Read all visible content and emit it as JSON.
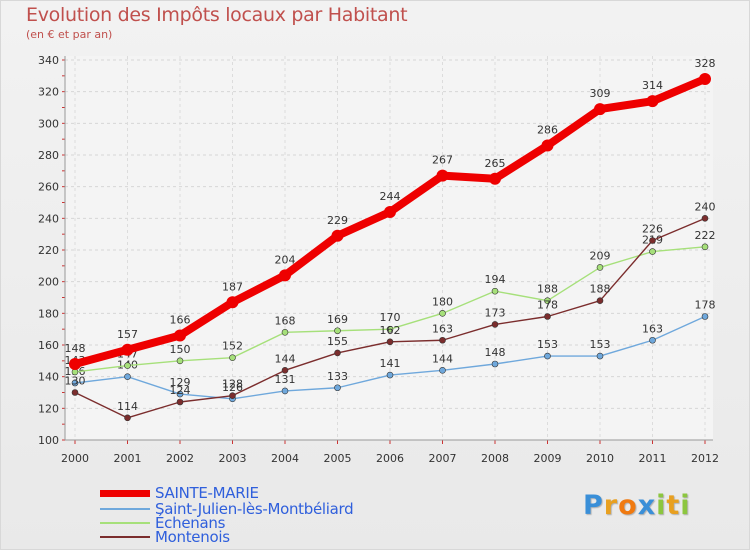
{
  "header": {
    "title": "Evolution des Impôts locaux par Habitant",
    "subtitle": "(en € et par an)"
  },
  "logo": {
    "letters": [
      "P",
      "r",
      "o",
      "x",
      "i",
      "t",
      "i"
    ],
    "colors": [
      "#3a8fd8",
      "#e8a020",
      "#f07a10",
      "#3a8fd8",
      "#8cc63f",
      "#e8a020",
      "#8cc63f"
    ]
  },
  "chart_data": {
    "type": "line",
    "title": "Evolution des Impôts locaux par Habitant",
    "subtitle": "(en € et par an)",
    "xlabel": "",
    "ylabel": "",
    "x": [
      "2000",
      "2001",
      "2002",
      "2003",
      "2004",
      "2005",
      "2006",
      "2007",
      "2008",
      "2009",
      "2010",
      "2011",
      "2012"
    ],
    "ylim": [
      100,
      340
    ],
    "yticks": [
      "100",
      "120",
      "140",
      "160",
      "180",
      "200",
      "220",
      "240",
      "260",
      "280",
      "300",
      "320",
      "340"
    ],
    "grid": true,
    "series": [
      {
        "name": "SAINTE-MARIE",
        "color": "#ee0000",
        "values": [
          148,
          157,
          166,
          187,
          204,
          229,
          244,
          267,
          265,
          286,
          309,
          314,
          328
        ],
        "labels": [
          "148",
          "157",
          "166",
          "187",
          "204",
          "229",
          "244",
          "267",
          "265",
          "286",
          "309",
          "314",
          "328"
        ]
      },
      {
        "name": "Saint-Julien-lès-Montbéliard",
        "color": "#6fa8dc",
        "values": [
          136,
          140,
          129,
          126,
          131,
          133,
          141,
          144,
          148,
          153,
          153,
          163,
          178
        ],
        "labels": [
          "136",
          "140",
          "129",
          "126",
          "131",
          "133",
          "141",
          "144",
          "148",
          "153",
          "153",
          "163",
          "178"
        ]
      },
      {
        "name": "Échenans",
        "color": "#a6e07a",
        "values": [
          143,
          147,
          150,
          152,
          168,
          169,
          170,
          180,
          194,
          188,
          209,
          219,
          222
        ],
        "labels": [
          "143",
          "147",
          "150",
          "152",
          "168",
          "169",
          "170",
          "180",
          "194",
          "188",
          "209",
          "219",
          "222"
        ]
      },
      {
        "name": "Montenois",
        "color": "#7b2d2d",
        "values": [
          130,
          114,
          124,
          128,
          144,
          155,
          162,
          163,
          173,
          178,
          188,
          226,
          240
        ],
        "labels": [
          "130",
          "114",
          "124",
          "128",
          "144",
          "155",
          "162",
          "163",
          "173",
          "178",
          "188",
          "226",
          "240"
        ]
      }
    ]
  }
}
